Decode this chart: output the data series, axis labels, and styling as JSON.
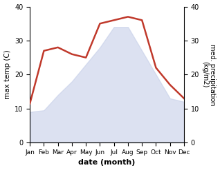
{
  "months": [
    "Jan",
    "Feb",
    "Mar",
    "Apr",
    "May",
    "Jun",
    "Jul",
    "Aug",
    "Sep",
    "Oct",
    "Nov",
    "Dec"
  ],
  "max_temp": [
    9,
    9.5,
    14,
    18,
    23,
    28,
    34,
    34,
    27,
    20,
    13,
    12
  ],
  "precipitation": [
    11.5,
    27,
    28,
    26,
    25,
    35,
    36,
    37,
    36,
    22,
    17,
    13
  ],
  "temp_line_color": "#c0392b",
  "temp_fill_color": "#c5cee8",
  "ylim": [
    0,
    40
  ],
  "xlabel": "date (month)",
  "ylabel_left": "max temp (C)",
  "ylabel_right": "med. precipitation\n(kg/m2)",
  "yticks": [
    0,
    10,
    20,
    30,
    40
  ],
  "background_color": "#ffffff",
  "fill_alpha": 0.6
}
